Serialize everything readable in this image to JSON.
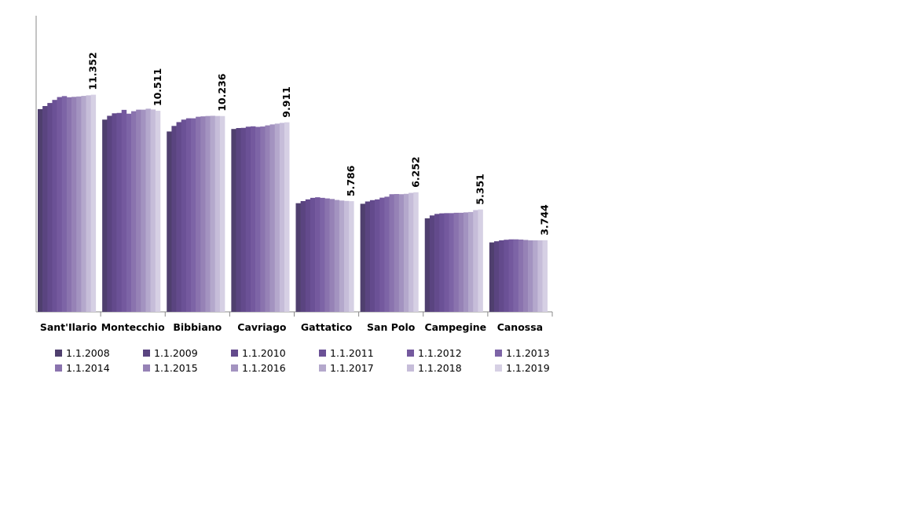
{
  "chart_data": {
    "type": "bar",
    "categories": [
      "Sant'Ilario",
      "Montecchio",
      "Bibbiano",
      "Cavriago",
      "Gattatico",
      "San Polo",
      "Campegine",
      "Canossa"
    ],
    "series": [
      {
        "name": "1.1.2008",
        "color": "#4f3f6e",
        "values": [
          10600,
          10050,
          9430,
          9560,
          5680,
          5650,
          4890,
          3630
        ]
      },
      {
        "name": "1.1.2009",
        "color": "#5a4480",
        "values": [
          10760,
          10250,
          9720,
          9610,
          5790,
          5770,
          5040,
          3690
        ]
      },
      {
        "name": "1.1.2010",
        "color": "#634a8c",
        "values": [
          10920,
          10380,
          9920,
          9620,
          5880,
          5840,
          5120,
          3740
        ]
      },
      {
        "name": "1.1.2011",
        "color": "#6b5196",
        "values": [
          11080,
          10400,
          10050,
          9680,
          5960,
          5880,
          5150,
          3770
        ]
      },
      {
        "name": "1.1.2012",
        "color": "#74599e",
        "values": [
          11230,
          10560,
          10120,
          9700,
          5990,
          5970,
          5160,
          3790
        ]
      },
      {
        "name": "1.1.2013",
        "color": "#7d64a6",
        "values": [
          11280,
          10360,
          10120,
          9670,
          5960,
          6020,
          5160,
          3790
        ]
      },
      {
        "name": "1.1.2014",
        "color": "#8a73ae",
        "values": [
          11220,
          10490,
          10200,
          9690,
          5930,
          6150,
          5180,
          3780
        ]
      },
      {
        "name": "1.1.2015",
        "color": "#9682b6",
        "values": [
          11240,
          10570,
          10220,
          9750,
          5900,
          6160,
          5180,
          3760
        ]
      },
      {
        "name": "1.1.2016",
        "color": "#a393c0",
        "values": [
          11260,
          10570,
          10240,
          9800,
          5850,
          6150,
          5200,
          3740
        ]
      },
      {
        "name": "1.1.2017",
        "color": "#b4a8cc",
        "values": [
          11290,
          10620,
          10250,
          9840,
          5820,
          6170,
          5220,
          3740
        ]
      },
      {
        "name": "1.1.2018",
        "color": "#c6bdd9",
        "values": [
          11320,
          10580,
          10240,
          9880,
          5800,
          6220,
          5320,
          3740
        ]
      },
      {
        "name": "1.1.2019",
        "color": "#d6d0e4",
        "values": [
          11352,
          10511,
          10236,
          9911,
          5786,
          6252,
          5351,
          3744
        ]
      }
    ],
    "data_labels": [
      "11.352",
      "10.511",
      "10.236",
      "9.911",
      "5.786",
      "6.252",
      "5.351",
      "3.744"
    ],
    "ylim": [
      0,
      14000
    ],
    "grid": false,
    "legend_position": "bottom"
  }
}
